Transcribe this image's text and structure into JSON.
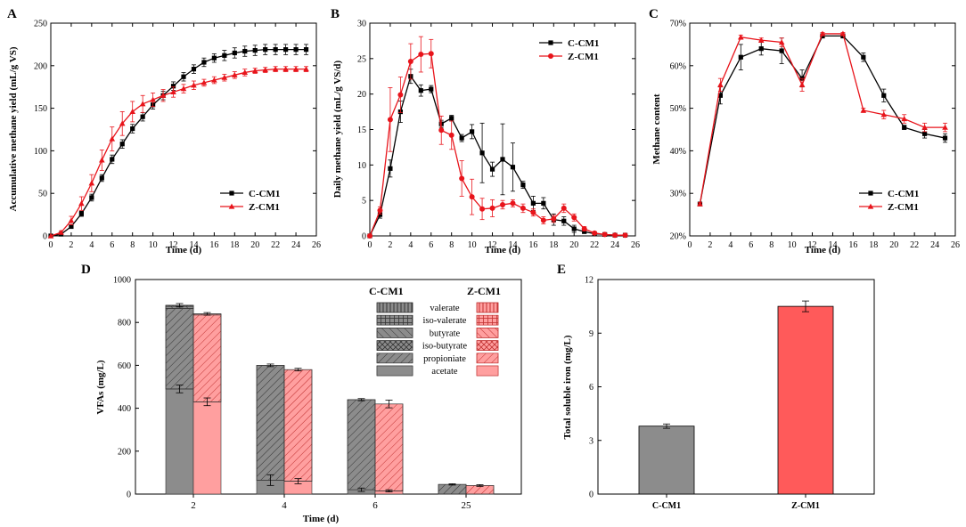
{
  "colors": {
    "black_series": "#000000",
    "red_series": "#e8141b",
    "gray_bar": "#8c8c8c",
    "red_bar": "#ff5a5a",
    "axis": "#000000"
  },
  "chart_data": [
    {
      "panel": "A",
      "type": "line",
      "xlabel": "Time (d)",
      "ylabel": "Accumulative methane yield (mL/g VS)",
      "xlim": [
        0,
        26
      ],
      "ylim": [
        0,
        250
      ],
      "xticks": [
        0,
        2,
        4,
        6,
        8,
        10,
        12,
        14,
        16,
        18,
        20,
        22,
        24,
        26
      ],
      "yticks": [
        0,
        50,
        100,
        150,
        200,
        250
      ],
      "legend_position": "bottom-right",
      "series": [
        {
          "name": "C-CM1",
          "marker": "square",
          "color": "#000000",
          "x": [
            0,
            1,
            2,
            3,
            4,
            5,
            6,
            7,
            8,
            9,
            10,
            11,
            12,
            13,
            14,
            15,
            16,
            17,
            18,
            19,
            20,
            21,
            22,
            23,
            24,
            25
          ],
          "y": [
            0,
            2,
            11,
            26,
            45,
            68,
            90,
            108,
            126,
            140,
            154,
            165,
            176,
            187,
            196,
            204,
            209,
            212,
            215,
            217,
            218,
            219,
            219,
            219,
            219,
            219
          ],
          "err": [
            0,
            1,
            2,
            3,
            4,
            4,
            5,
            5,
            5,
            5,
            5,
            5,
            5,
            5,
            5,
            5,
            5,
            6,
            6,
            6,
            6,
            6,
            6,
            6,
            6,
            6
          ]
        },
        {
          "name": "Z-CM1",
          "marker": "triangle",
          "color": "#e8141b",
          "x": [
            0,
            1,
            2,
            3,
            4,
            5,
            6,
            7,
            8,
            9,
            10,
            11,
            12,
            13,
            14,
            15,
            16,
            17,
            18,
            19,
            20,
            21,
            22,
            23,
            24,
            25
          ],
          "y": [
            0,
            4,
            18,
            38,
            62,
            89,
            114,
            132,
            146,
            155,
            160,
            165,
            169,
            173,
            177,
            180,
            183,
            186,
            189,
            192,
            194,
            195,
            196,
            196,
            196,
            196
          ],
          "err": [
            0,
            2,
            5,
            8,
            10,
            12,
            14,
            14,
            12,
            10,
            8,
            7,
            6,
            5,
            5,
            4,
            4,
            4,
            4,
            4,
            3,
            3,
            3,
            3,
            3,
            3
          ]
        }
      ]
    },
    {
      "panel": "B",
      "type": "line",
      "xlabel": "Time (d)",
      "ylabel": "Daily methane yield (mL/g VS/d)",
      "xlim": [
        0,
        26
      ],
      "ylim": [
        0,
        30
      ],
      "xticks": [
        0,
        2,
        4,
        6,
        8,
        10,
        12,
        14,
        16,
        18,
        20,
        22,
        24,
        26
      ],
      "yticks": [
        0,
        5,
        10,
        15,
        20,
        25,
        30
      ],
      "legend_position": "top-right",
      "series": [
        {
          "name": "C-CM1",
          "marker": "square",
          "color": "#000000",
          "x": [
            0,
            1,
            2,
            3,
            4,
            5,
            6,
            7,
            8,
            9,
            10,
            11,
            12,
            13,
            14,
            15,
            16,
            17,
            18,
            19,
            20,
            21,
            22,
            23,
            24,
            25
          ],
          "y": [
            0,
            3,
            9.5,
            17.5,
            22.5,
            20.5,
            20.7,
            15.8,
            16.6,
            13.8,
            14.7,
            11.7,
            9.4,
            10.8,
            9.7,
            7.2,
            4.6,
            4.6,
            2.3,
            2.1,
            1.0,
            0.6,
            0.3,
            0.2,
            0.1,
            0.1
          ],
          "err": [
            0,
            0.5,
            1.2,
            1.5,
            1.0,
            0.8,
            0.5,
            0.5,
            0.4,
            0.5,
            1.0,
            4.2,
            1.0,
            5.0,
            3.4,
            0.5,
            1.0,
            0.8,
            0.8,
            0.6,
            0.5,
            0.2,
            0.1,
            0.1,
            0.1,
            0.1
          ]
        },
        {
          "name": "Z-CM1",
          "marker": "circle",
          "color": "#e8141b",
          "x": [
            0,
            1,
            2,
            3,
            4,
            5,
            6,
            7,
            8,
            9,
            10,
            11,
            12,
            13,
            14,
            15,
            16,
            17,
            18,
            19,
            20,
            21,
            22,
            23,
            24,
            25
          ],
          "y": [
            0,
            3.6,
            16.4,
            19.9,
            24.6,
            25.6,
            25.7,
            14.9,
            14.2,
            8.1,
            5.5,
            3.8,
            3.9,
            4.4,
            4.6,
            3.9,
            3.3,
            2.2,
            2.4,
            3.9,
            2.6,
            1.0,
            0.4,
            0.2,
            0.1,
            0.1
          ],
          "err": [
            0,
            0.5,
            4.5,
            2.5,
            2.5,
            2.5,
            2.0,
            2.0,
            2.0,
            2.5,
            2.5,
            1.5,
            1.2,
            0.6,
            0.5,
            0.6,
            0.5,
            0.5,
            0.5,
            0.6,
            0.5,
            0.3,
            0.2,
            0.1,
            0.1,
            0.1
          ]
        }
      ]
    },
    {
      "panel": "C",
      "type": "line",
      "xlabel": "Time (d)",
      "ylabel": "Methane content",
      "xlim": [
        0,
        26
      ],
      "ylim": [
        20,
        70
      ],
      "xticks": [
        0,
        2,
        4,
        6,
        8,
        10,
        12,
        14,
        16,
        18,
        20,
        22,
        24,
        26
      ],
      "yticks": [
        20,
        30,
        40,
        50,
        60,
        70
      ],
      "ytick_labels": [
        "20%",
        "30%",
        "40%",
        "50%",
        "60%",
        "70%"
      ],
      "legend_position": "bottom-right",
      "series": [
        {
          "name": "C-CM1",
          "marker": "square",
          "color": "#000000",
          "x": [
            1,
            3,
            5,
            7,
            9,
            11,
            13,
            15,
            17,
            19,
            21,
            23,
            25
          ],
          "y": [
            27.5,
            53,
            62,
            64,
            63.5,
            57,
            67,
            67,
            62,
            53,
            45.5,
            44,
            43
          ],
          "err": [
            0.3,
            2,
            3,
            1.5,
            3,
            2,
            0.5,
            0.5,
            1,
            1.5,
            0.5,
            1,
            1
          ]
        },
        {
          "name": "Z-CM1",
          "marker": "triangle",
          "color": "#e8141b",
          "x": [
            1,
            3,
            5,
            7,
            9,
            11,
            13,
            15,
            17,
            19,
            21,
            23,
            25
          ],
          "y": [
            27.5,
            55.5,
            66.7,
            66,
            65.5,
            55.5,
            67.5,
            67.5,
            49.5,
            48.5,
            47.5,
            45.5,
            45.5
          ],
          "err": [
            0.3,
            1.5,
            0.5,
            0.5,
            1,
            1.5,
            0.3,
            0.3,
            0.5,
            1,
            1,
            1,
            1
          ]
        }
      ]
    },
    {
      "panel": "D",
      "type": "bar",
      "stacked": true,
      "xlabel": "Time (d)",
      "ylabel": "VFAs (mg/L)",
      "ylim": [
        0,
        1000
      ],
      "yticks": [
        0,
        200,
        400,
        600,
        800,
        1000
      ],
      "categories": [
        "2",
        "4",
        "6",
        "25"
      ],
      "legend_headers": [
        "C-CM1",
        "Z-CM1"
      ],
      "components": [
        "valerate",
        "iso-valerate",
        "butyrate",
        "iso-butyrate",
        "propioniate",
        "acetate"
      ],
      "series": [
        {
          "name": "C-CM1",
          "color": "#8c8c8c",
          "acetate": [
            490,
            65,
            20,
            0
          ],
          "propioniate": [
            375,
            535,
            420,
            45
          ],
          "butyrate": [
            10,
            0,
            0,
            0
          ],
          "valerate": [
            5,
            0,
            0,
            0
          ],
          "totals": [
            880,
            600,
            440,
            45
          ],
          "acetate_err": [
            18,
            25,
            8,
            0
          ],
          "total_err": [
            8,
            6,
            5,
            3
          ]
        },
        {
          "name": "Z-CM1",
          "color": "#ff9a9a",
          "acetate": [
            430,
            60,
            15,
            0
          ],
          "propioniate": [
            405,
            520,
            405,
            40
          ],
          "butyrate": [
            5,
            0,
            0,
            0
          ],
          "valerate": [
            0,
            0,
            0,
            0
          ],
          "totals": [
            840,
            580,
            420,
            40
          ],
          "acetate_err": [
            18,
            12,
            5,
            0
          ],
          "total_err": [
            6,
            6,
            18,
            4
          ]
        }
      ]
    },
    {
      "panel": "E",
      "type": "bar",
      "xlabel": "",
      "ylabel": "Total soluble iron (mg/L)",
      "ylim": [
        0,
        12
      ],
      "yticks": [
        0,
        3,
        6,
        9,
        12
      ],
      "categories": [
        "C-CM1",
        "Z-CM1"
      ],
      "values": [
        3.8,
        10.5
      ],
      "err": [
        0.12,
        0.3
      ],
      "colors": [
        "#8c8c8c",
        "#ff5a5a"
      ]
    }
  ]
}
